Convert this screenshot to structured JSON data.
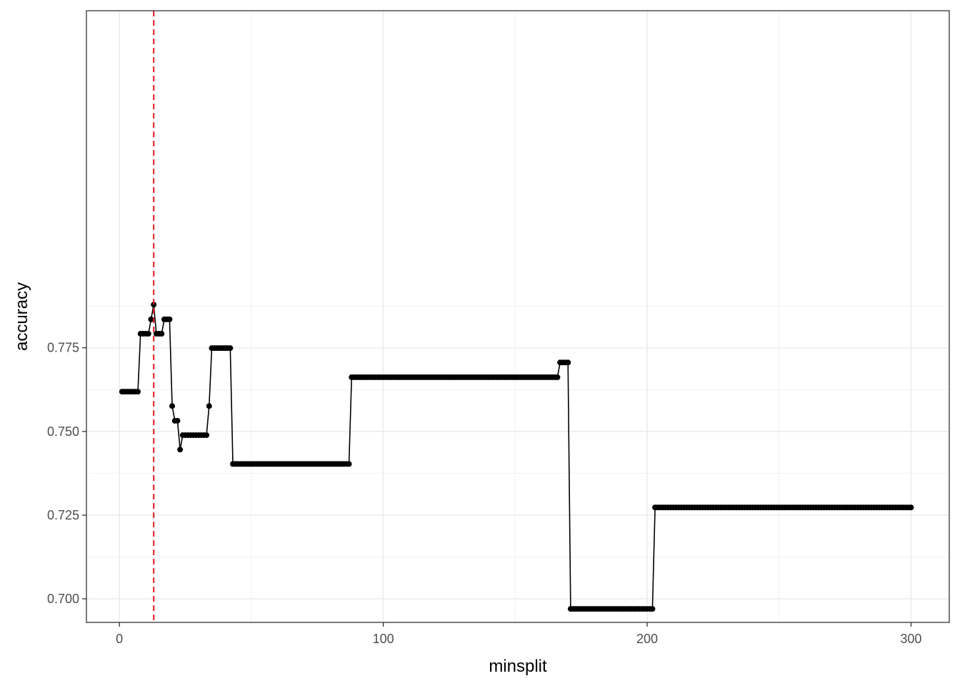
{
  "chart_data": {
    "type": "line",
    "title": "",
    "xlabel": "minsplit",
    "ylabel": "accuracy",
    "xlim": [
      -12.5,
      314.5
    ],
    "ylim": [
      0.69296,
      0.8757
    ],
    "x_ticks": [
      0,
      100,
      200,
      300
    ],
    "x_tick_labels": [
      "0",
      "100",
      "200",
      "300"
    ],
    "y_ticks": [
      0.7,
      0.725,
      0.75,
      0.775
    ],
    "y_tick_labels": [
      "0.700",
      "0.725",
      "0.750",
      "0.775"
    ],
    "grid": true,
    "legend": "none",
    "reference_line": {
      "axis": "x",
      "value": 13,
      "color": "#e41a1c",
      "style": "dashed"
    },
    "series": [
      {
        "x_start": 1,
        "x_end": 300,
        "segments": [
          {
            "x_from": 1,
            "x_to": 7,
            "y": 0.7619
          },
          {
            "x_from": 8,
            "x_to": 11,
            "y": 0.7792
          },
          {
            "x_from": 12,
            "x_to": 12,
            "y": 0.7835
          },
          {
            "x_from": 13,
            "x_to": 13,
            "y": 0.7879
          },
          {
            "x_from": 14,
            "x_to": 16,
            "y": 0.7792
          },
          {
            "x_from": 17,
            "x_to": 19,
            "y": 0.7835
          },
          {
            "x_from": 20,
            "x_to": 20,
            "y": 0.7576
          },
          {
            "x_from": 21,
            "x_to": 22,
            "y": 0.7532
          },
          {
            "x_from": 23,
            "x_to": 23,
            "y": 0.7446
          },
          {
            "x_from": 24,
            "x_to": 33,
            "y": 0.7489
          },
          {
            "x_from": 34,
            "x_to": 34,
            "y": 0.7576
          },
          {
            "x_from": 35,
            "x_to": 42,
            "y": 0.7749
          },
          {
            "x_from": 43,
            "x_to": 87,
            "y": 0.7403
          },
          {
            "x_from": 88,
            "x_to": 166,
            "y": 0.7662
          },
          {
            "x_from": 167,
            "x_to": 170,
            "y": 0.7706
          },
          {
            "x_from": 171,
            "x_to": 202,
            "y": 0.697
          },
          {
            "x_from": 203,
            "x_to": 300,
            "y": 0.7273
          }
        ]
      }
    ]
  }
}
